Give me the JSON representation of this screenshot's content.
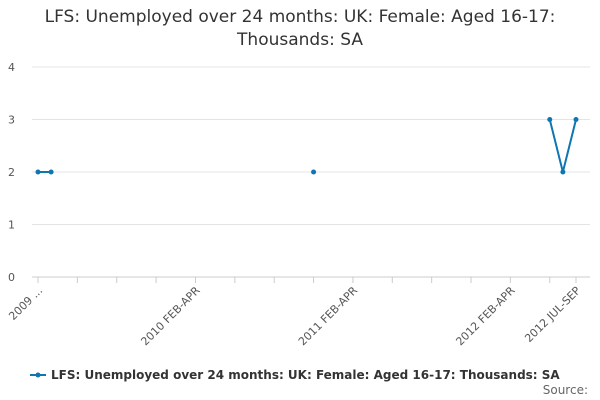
{
  "chart_data": {
    "type": "line",
    "title": "LFS: Unemployed over 24 months: UK: Female: Aged 16-17: Thousands: SA",
    "categories": [
      "2009 ...",
      null,
      null,
      null,
      null,
      null,
      null,
      null,
      null,
      null,
      null,
      null,
      "2010 FEB-APR",
      null,
      null,
      null,
      null,
      null,
      null,
      null,
      null,
      null,
      null,
      null,
      "2011 FEB-APR",
      null,
      null,
      null,
      null,
      null,
      null,
      null,
      null,
      null,
      null,
      null,
      "2012 FEB-APR",
      null,
      null,
      null,
      null,
      "2012 JUL-SEP"
    ],
    "series": [
      {
        "name": "LFS: Unemployed over 24 months: UK: Female: Aged 16-17: Thousands: SA",
        "color": "#0e76b0",
        "values": [
          2,
          2,
          null,
          null,
          null,
          null,
          null,
          null,
          null,
          null,
          null,
          null,
          null,
          null,
          null,
          null,
          null,
          null,
          null,
          null,
          null,
          2,
          null,
          null,
          null,
          null,
          null,
          null,
          null,
          null,
          null,
          null,
          null,
          null,
          null,
          null,
          null,
          null,
          null,
          3,
          2,
          3
        ]
      }
    ],
    "ylim": [
      0,
      4
    ],
    "yticks": [
      0,
      1,
      2,
      3,
      4
    ],
    "grid": true,
    "legend": "bottom",
    "source": "Source:"
  }
}
